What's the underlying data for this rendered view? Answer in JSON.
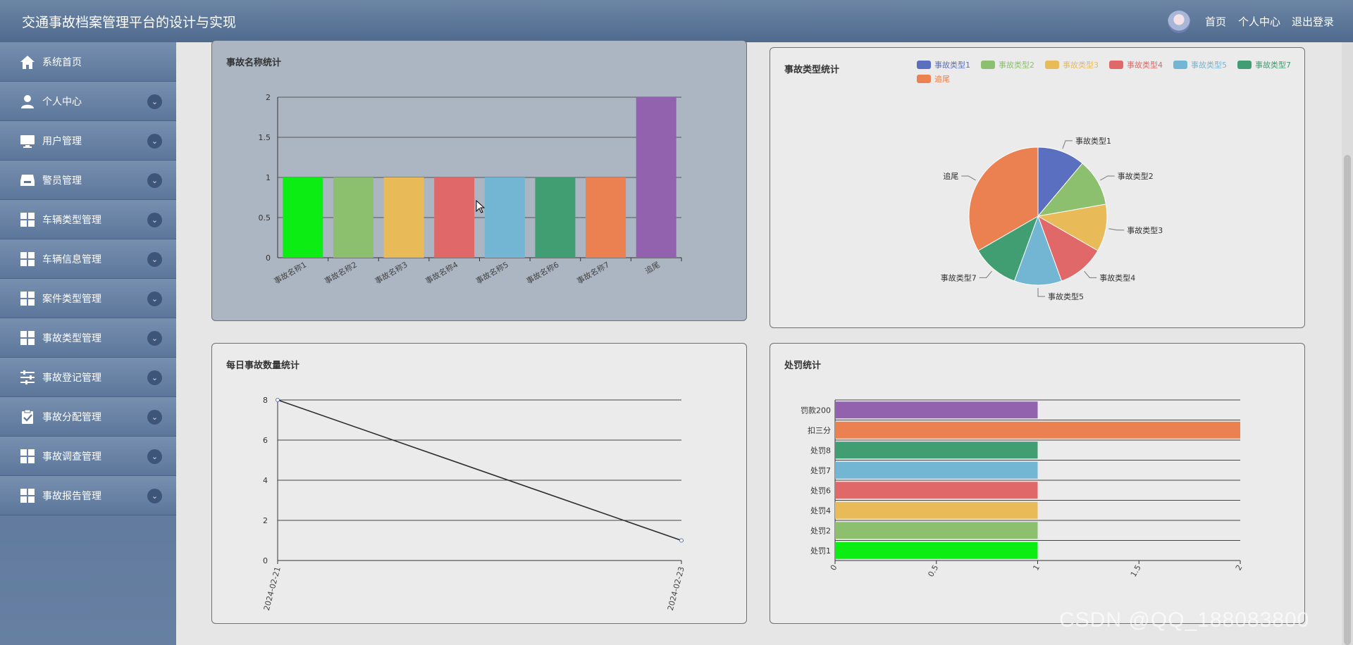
{
  "header": {
    "title": "交通事故档案管理平台的设计与实现",
    "nav": [
      {
        "label": "首页"
      },
      {
        "label": "个人中心"
      },
      {
        "label": "退出登录"
      }
    ]
  },
  "sidebar": {
    "items": [
      {
        "label": "系统首页",
        "icon": "home-icon",
        "expandable": false
      },
      {
        "label": "个人中心",
        "icon": "user-icon",
        "expandable": true
      },
      {
        "label": "用户管理",
        "icon": "monitor-icon",
        "expandable": true
      },
      {
        "label": "警员管理",
        "icon": "inbox-icon",
        "expandable": true
      },
      {
        "label": "车辆类型管理",
        "icon": "grid-icon",
        "expandable": true
      },
      {
        "label": "车辆信息管理",
        "icon": "grid-icon",
        "expandable": true
      },
      {
        "label": "案件类型管理",
        "icon": "grid-icon",
        "expandable": true
      },
      {
        "label": "事故类型管理",
        "icon": "grid-icon",
        "expandable": true
      },
      {
        "label": "事故登记管理",
        "icon": "sliders-icon",
        "expandable": true
      },
      {
        "label": "事故分配管理",
        "icon": "clipboard-check-icon",
        "expandable": true
      },
      {
        "label": "事故调查管理",
        "icon": "grid-icon",
        "expandable": true
      },
      {
        "label": "事故报告管理",
        "icon": "grid-icon",
        "expandable": true
      }
    ]
  },
  "watermark": "CSDN @QQ_188083800",
  "chart_data": [
    {
      "type": "bar",
      "title": "事故名称统计",
      "categories": [
        "事故名称1",
        "事故名称2",
        "事故名称3",
        "事故名称4",
        "事故名称5",
        "事故名称6",
        "事故名称7",
        "追尾"
      ],
      "values": [
        1,
        1,
        1,
        1,
        1,
        1,
        1,
        2
      ],
      "colors": [
        "#0ced14",
        "#8dc06e",
        "#e8ba58",
        "#e06868",
        "#73b6d4",
        "#409e72",
        "#eb8150",
        "#9262ae"
      ],
      "yticks": [
        "0",
        "0.5",
        "1",
        "1.5",
        "2"
      ],
      "ylim": [
        0,
        2
      ],
      "grid": true
    },
    {
      "type": "pie",
      "title": "事故类型统计",
      "labels": [
        "事故类型1",
        "事故类型2",
        "事故类型3",
        "事故类型4",
        "事故类型5",
        "事故类型7",
        "追尾"
      ],
      "values": [
        1,
        1,
        1,
        1,
        1,
        1,
        3
      ],
      "colors": [
        "#5a6fc0",
        "#8dc06e",
        "#e8ba58",
        "#e06868",
        "#73b6d4",
        "#409e72",
        "#eb8150"
      ],
      "legend_position": "top"
    },
    {
      "type": "line",
      "title": "每日事故数量统计",
      "x": [
        "2024-02-21",
        "2024-02-23"
      ],
      "y": [
        8,
        1
      ],
      "yticks": [
        "0",
        "2",
        "4",
        "6",
        "8"
      ],
      "ylim": [
        0,
        8
      ],
      "grid": true,
      "color": "#2d2d2d"
    },
    {
      "type": "bar",
      "orientation": "horizontal",
      "title": "处罚统计",
      "categories": [
        "处罚1",
        "处罚2",
        "处罚4",
        "处罚6",
        "处罚7",
        "处罚8",
        "扣三分",
        "罚款200"
      ],
      "values": [
        1,
        1,
        1,
        1,
        1,
        1,
        2,
        1
      ],
      "colors": [
        "#0ced14",
        "#8dc06e",
        "#e8ba58",
        "#e06868",
        "#73b6d4",
        "#409e72",
        "#eb8150",
        "#9262ae"
      ],
      "xticks": [
        "0",
        "0.5",
        "1",
        "1.5",
        "2"
      ],
      "xlim": [
        0,
        2
      ],
      "grid": true
    }
  ]
}
